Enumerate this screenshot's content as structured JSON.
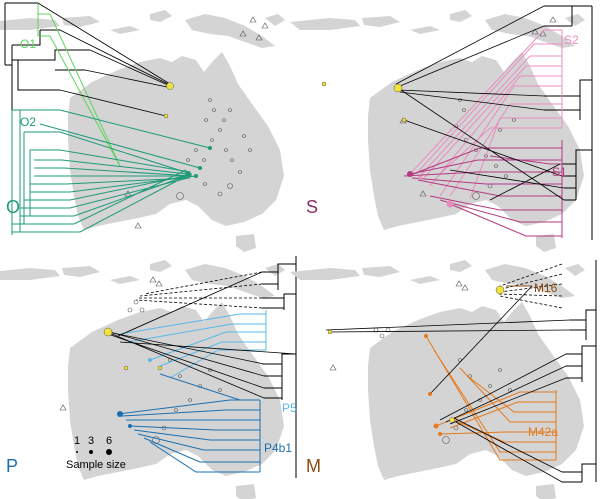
{
  "panels": [
    {
      "id": "O",
      "letter": "O",
      "clades": [
        "O1",
        "O2"
      ],
      "colors": {
        "O1": "#5fd35f",
        "O2": "#1e9a78",
        "letter": "#1e9a78"
      }
    },
    {
      "id": "S",
      "letter": "S",
      "clades": [
        "S2",
        "S1"
      ],
      "colors": {
        "S2": "#e98cc0",
        "S1": "#b43a82",
        "letter": "#8a2a63"
      }
    },
    {
      "id": "P",
      "letter": "P",
      "clades": [
        "P5",
        "P4b1"
      ],
      "colors": {
        "P5": "#5ab8e8",
        "P4b1": "#1b6fb0",
        "letter": "#1b6fb0"
      }
    },
    {
      "id": "M",
      "letter": "M",
      "clades": [
        "M16",
        "M42a"
      ],
      "colors": {
        "M16": "#8b4a12",
        "M42a": "#e57a1e",
        "letter": "#8b4a12"
      }
    }
  ],
  "legend": {
    "values": [
      "1",
      "3",
      "6"
    ],
    "title": "Sample size"
  }
}
